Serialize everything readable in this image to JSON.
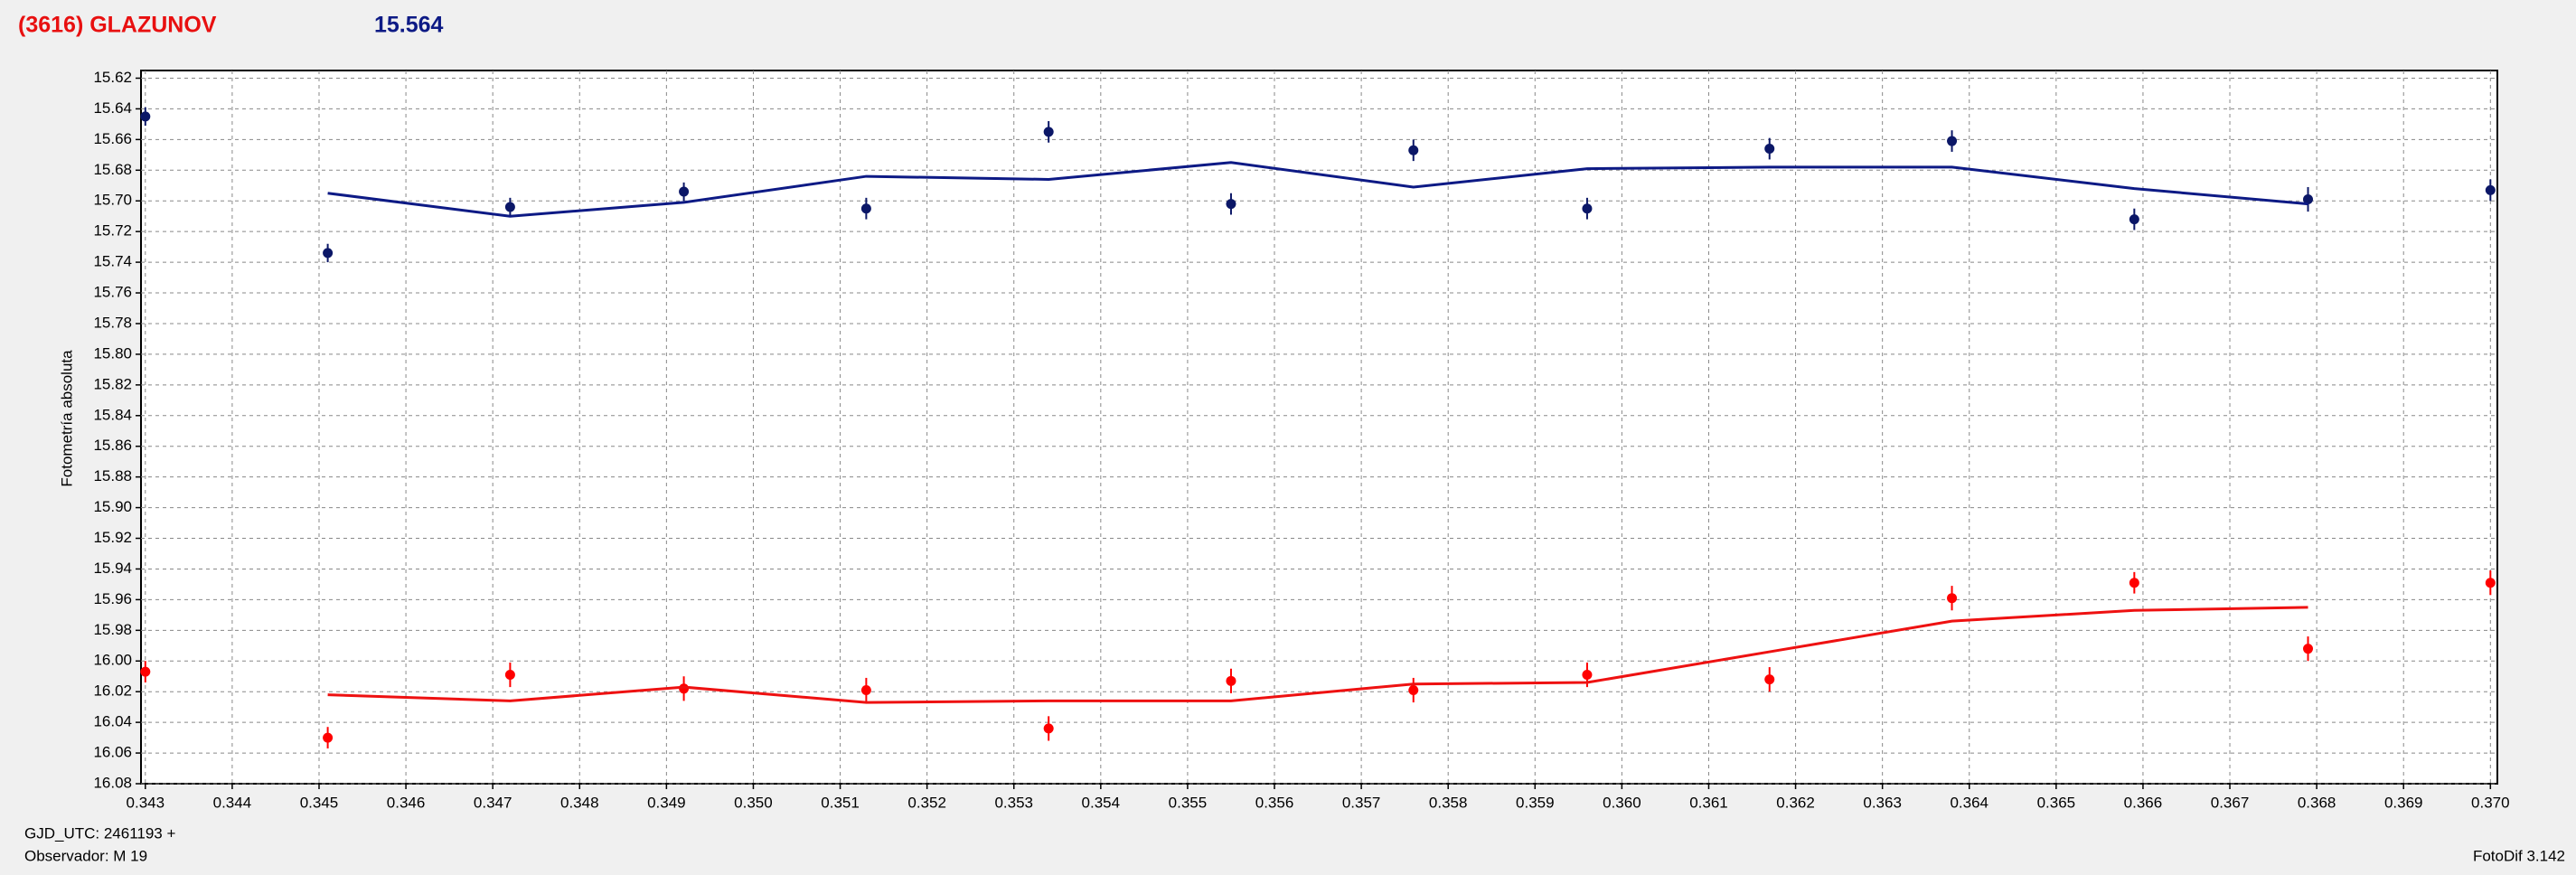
{
  "chart_data": {
    "type": "scatter",
    "title": "(3616) GLAZUNOV",
    "subtitle": "15.564",
    "y_label": "Fotometría absoluta",
    "x_label": "GJD_UTC: 2461193 +",
    "observer": "Observador: M 19",
    "software": "FotoDif 3.142",
    "x": [
      0.343,
      0.3451,
      0.3472,
      0.3492,
      0.3513,
      0.3534,
      0.3555,
      0.3576,
      0.3596,
      0.3617,
      0.3638,
      0.3659,
      0.3679,
      0.37
    ],
    "series": [
      {
        "mode": "markers",
        "color": "#0b1767",
        "values": [
          15.645,
          15.734,
          15.704,
          15.694,
          15.705,
          15.655,
          15.702,
          15.667,
          15.705,
          15.666,
          15.661,
          15.712,
          15.699,
          15.693
        ],
        "errors": [
          0.006,
          0.006,
          0.006,
          0.006,
          0.007,
          0.007,
          0.007,
          0.007,
          0.007,
          0.007,
          0.007,
          0.007,
          0.008,
          0.007
        ]
      },
      {
        "mode": "lines",
        "color": "#0d1a85",
        "values": [
          null,
          15.695,
          15.71,
          15.701,
          15.684,
          15.686,
          15.675,
          15.691,
          15.679,
          15.678,
          15.678,
          15.692,
          15.702,
          null
        ]
      },
      {
        "mode": "markers",
        "color": "#ff0000",
        "values": [
          16.007,
          16.05,
          16.009,
          16.018,
          16.019,
          16.044,
          16.013,
          16.019,
          16.009,
          16.012,
          15.959,
          15.949,
          15.992,
          15.949
        ],
        "errors": [
          0.007,
          0.007,
          0.008,
          0.008,
          0.008,
          0.008,
          0.008,
          0.008,
          0.008,
          0.008,
          0.008,
          0.007,
          0.008,
          0.008
        ]
      },
      {
        "mode": "lines",
        "color": "#ee1111",
        "values": [
          null,
          16.022,
          16.026,
          16.017,
          16.027,
          16.026,
          16.026,
          16.015,
          16.014,
          15.994,
          15.974,
          15.967,
          15.965,
          null
        ]
      }
    ],
    "xlim": [
      0.34295,
      0.37008
    ],
    "ylim": [
      16.08,
      15.615
    ],
    "xticks": [
      0.343,
      0.344,
      0.345,
      0.346,
      0.347,
      0.348,
      0.349,
      {
        "value": 0.35,
        "label": "0.350"
      },
      0.351,
      0.352,
      0.353,
      0.354,
      0.355,
      0.356,
      0.357,
      0.358,
      0.359,
      {
        "value": 0.36,
        "label": "0.360"
      },
      0.361,
      0.362,
      0.363,
      0.364,
      0.365,
      0.366,
      0.367,
      0.368,
      0.369,
      {
        "value": 0.37,
        "label": "0.370"
      }
    ],
    "yticks": [
      15.62,
      15.64,
      15.66,
      15.68,
      {
        "value": 15.7,
        "label": "15.70"
      },
      15.72,
      15.74,
      15.76,
      15.78,
      {
        "value": 15.8,
        "label": "15.80"
      },
      15.82,
      15.84,
      15.86,
      15.88,
      {
        "value": 15.9,
        "label": "15.90"
      },
      15.92,
      15.94,
      15.96,
      15.98,
      {
        "value": 16,
        "label": "16.00"
      },
      16.02,
      16.04,
      16.06,
      16.08
    ],
    "grid": true
  }
}
